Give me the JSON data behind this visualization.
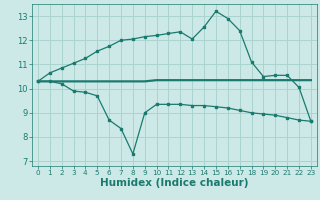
{
  "bg_color": "#cce9e7",
  "grid_color": "#aad4d0",
  "line_color": "#1a7a6e",
  "xlabel": "Humidex (Indice chaleur)",
  "xlabel_fontsize": 7.5,
  "x_ticks": [
    0,
    1,
    2,
    3,
    4,
    5,
    6,
    7,
    8,
    9,
    10,
    11,
    12,
    13,
    14,
    15,
    16,
    17,
    18,
    19,
    20,
    21,
    22,
    23
  ],
  "xlim": [
    -0.5,
    23.5
  ],
  "ylim": [
    6.8,
    13.5
  ],
  "y_ticks": [
    7,
    8,
    9,
    10,
    11,
    12,
    13
  ],
  "curve1_x": [
    0,
    1,
    2,
    3,
    4,
    5,
    6,
    7,
    8,
    9,
    10,
    11,
    12,
    13,
    14,
    15,
    16,
    17,
    18,
    19,
    20,
    21,
    22,
    23
  ],
  "curve1_y": [
    10.3,
    10.65,
    10.85,
    11.05,
    11.25,
    11.55,
    11.75,
    12.0,
    12.05,
    12.15,
    12.2,
    12.28,
    12.35,
    12.05,
    12.55,
    13.2,
    12.9,
    12.4,
    11.1,
    10.5,
    10.55,
    10.55,
    10.05,
    8.65
  ],
  "curve2_x": [
    0,
    1,
    2,
    3,
    4,
    5,
    6,
    7,
    8,
    9,
    10,
    11,
    12,
    13,
    14,
    15,
    16,
    17,
    18,
    19,
    20,
    21,
    22,
    23
  ],
  "curve2_y": [
    10.3,
    10.3,
    10.3,
    10.3,
    10.3,
    10.3,
    10.3,
    10.3,
    10.3,
    10.3,
    10.35,
    10.35,
    10.35,
    10.35,
    10.35,
    10.35,
    10.35,
    10.35,
    10.35,
    10.35,
    10.35,
    10.35,
    10.35,
    10.35
  ],
  "curve3_x": [
    0,
    1,
    2,
    3,
    4,
    5,
    6,
    7,
    8,
    9,
    10,
    11,
    12,
    13,
    14,
    15,
    16,
    17,
    18,
    19,
    20,
    21,
    22,
    23
  ],
  "curve3_y": [
    10.3,
    10.3,
    10.2,
    9.9,
    9.85,
    9.7,
    8.7,
    8.35,
    7.3,
    9.0,
    9.35,
    9.35,
    9.35,
    9.3,
    9.3,
    9.25,
    9.2,
    9.1,
    9.0,
    8.95,
    8.9,
    8.8,
    8.7,
    8.65
  ]
}
